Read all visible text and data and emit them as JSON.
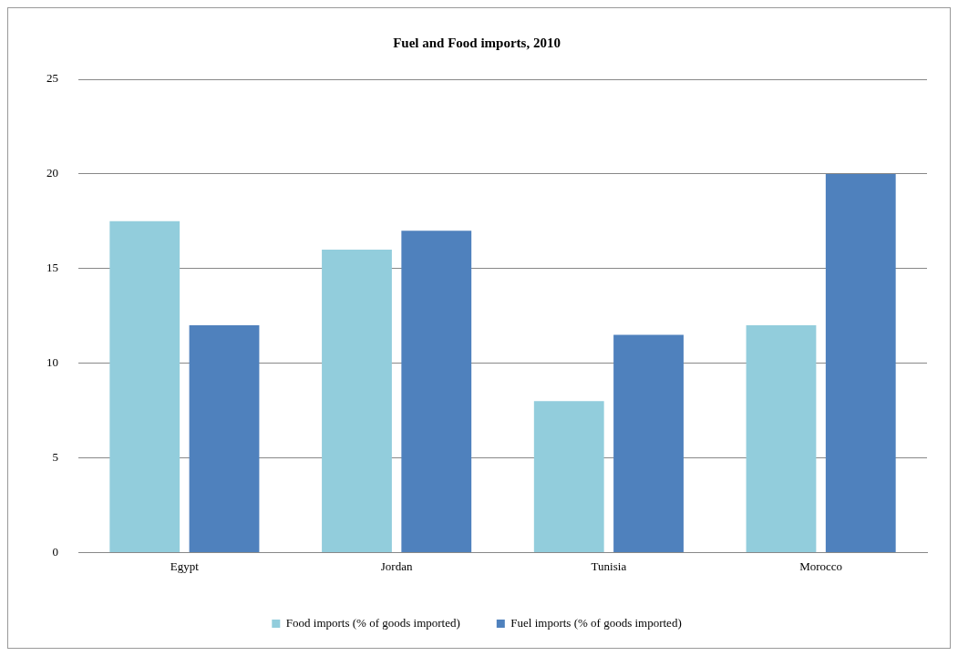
{
  "chart_data": {
    "type": "bar",
    "title": "Fuel and Food imports, 2010",
    "categories": [
      "Egypt",
      "Jordan",
      "Tunisia",
      "Morocco"
    ],
    "series": [
      {
        "name": "Food imports (% of goods imported)",
        "color": "#92cddc",
        "values": [
          17.5,
          16,
          8,
          12
        ]
      },
      {
        "name": "Fuel imports (% of goods imported)",
        "color": "#4f81bd",
        "values": [
          12,
          17,
          11.5,
          20
        ]
      }
    ],
    "ylim": [
      0,
      25
    ],
    "yticks": [
      0,
      5,
      10,
      15,
      20,
      25
    ],
    "grid": "y",
    "legend": "bottom"
  }
}
